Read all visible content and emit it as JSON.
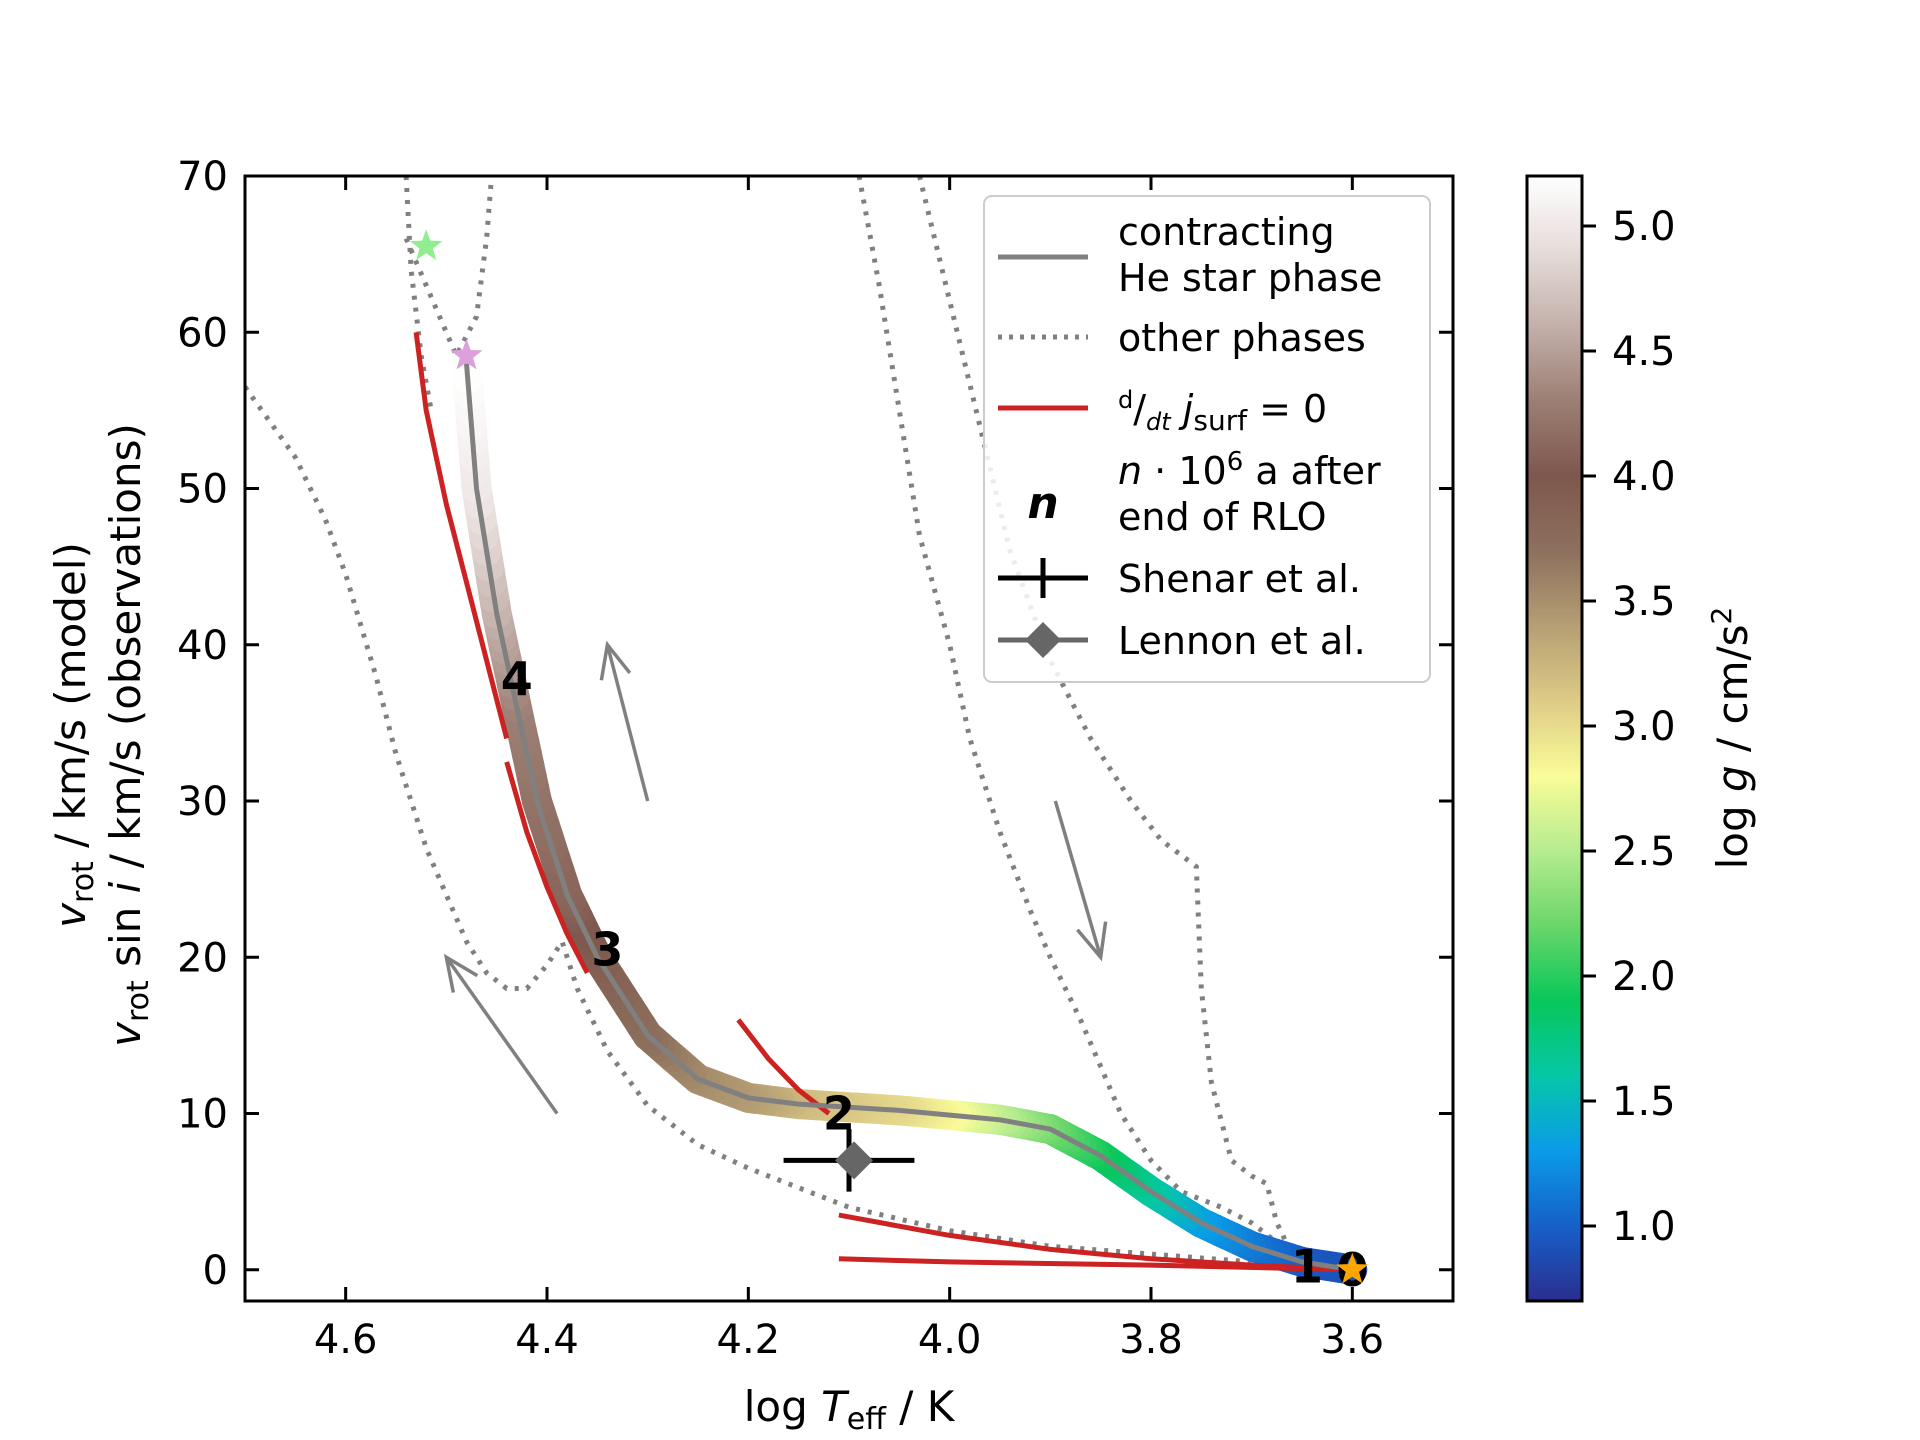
{
  "chart_data": {
    "type": "line",
    "xlabel": {
      "pre": "log ",
      "var": "T",
      "sub": "eff",
      "post": " / K"
    },
    "ylabel_line1": {
      "var": "v",
      "sub": "rot",
      "post": " / km/s (model)"
    },
    "ylabel_line2": {
      "var": "v",
      "sub": "rot",
      "mid": " sin ",
      "ivar": "i",
      "post": " / km/s (observations)"
    },
    "xlim": [
      4.7,
      3.5
    ],
    "ylim": [
      -2,
      70
    ],
    "x_ticks": [
      4.6,
      4.4,
      4.2,
      4.0,
      3.8,
      3.6
    ],
    "x_tick_labels": [
      "4.6",
      "4.4",
      "4.2",
      "4.0",
      "3.8",
      "3.6"
    ],
    "y_ticks": [
      0,
      10,
      20,
      30,
      40,
      50,
      60,
      70
    ],
    "y_tick_labels": [
      "0",
      "10",
      "20",
      "30",
      "40",
      "50",
      "60",
      "70"
    ],
    "colorbar": {
      "label": {
        "pre": "log ",
        "var": "g",
        "post": " / cm/s",
        "sup": "2"
      },
      "range": [
        0.7,
        5.2
      ],
      "ticks": [
        1.0,
        1.5,
        2.0,
        2.5,
        3.0,
        3.5,
        4.0,
        4.5,
        5.0
      ],
      "tick_labels": [
        "1.0",
        "1.5",
        "2.0",
        "2.5",
        "3.0",
        "3.5",
        "4.0",
        "4.5",
        "5.0"
      ],
      "colormap": [
        "#2a2e8f",
        "#1660c8",
        "#0a9be8",
        "#05c7a8",
        "#08c75a",
        "#6ad66a",
        "#b6ec8f",
        "#fafc98",
        "#ddcb86",
        "#b59f74",
        "#8d705d",
        "#7e574d",
        "#9c7f74",
        "#c4b0aa",
        "#e6dcda",
        "#ffffff"
      ]
    },
    "series": [
      {
        "name": "contracting He star phase",
        "style": "solid",
        "color": "#808080",
        "points": [
          [
            3.6,
            0.0
          ],
          [
            3.65,
            0.5
          ],
          [
            3.7,
            1.5
          ],
          [
            3.75,
            3.0
          ],
          [
            3.8,
            5.0
          ],
          [
            3.85,
            7.3
          ],
          [
            3.9,
            9.0
          ],
          [
            3.95,
            9.6
          ],
          [
            4.0,
            9.9
          ],
          [
            4.05,
            10.2
          ],
          [
            4.1,
            10.4
          ],
          [
            4.15,
            10.6
          ],
          [
            4.2,
            11.0
          ],
          [
            4.25,
            12.2
          ],
          [
            4.3,
            15.0
          ],
          [
            4.35,
            20.0
          ],
          [
            4.38,
            24.0
          ],
          [
            4.41,
            30.0
          ],
          [
            4.43,
            36.0
          ],
          [
            4.45,
            42.0
          ],
          [
            4.47,
            50.0
          ],
          [
            4.48,
            58.0
          ]
        ],
        "logg": [
          0.9,
          0.95,
          1.1,
          1.3,
          1.6,
          1.9,
          2.2,
          2.5,
          2.8,
          3.0,
          3.1,
          3.2,
          3.4,
          3.5,
          3.7,
          3.9,
          4.1,
          4.2,
          4.3,
          4.6,
          5.0,
          5.2
        ]
      },
      {
        "name": "other phases",
        "style": "dotted",
        "color": "#808080",
        "segments": [
          [
            [
              4.7,
              56.5
            ],
            [
              4.65,
              52.0
            ],
            [
              4.62,
              48.0
            ],
            [
              4.6,
              44.5
            ],
            [
              4.57,
              38.0
            ],
            [
              4.55,
              33.0
            ],
            [
              4.52,
              27.0
            ],
            [
              4.5,
              24.0
            ],
            [
              4.48,
              21.0
            ],
            [
              4.46,
              19.0
            ],
            [
              4.44,
              18.0
            ],
            [
              4.42,
              18.0
            ],
            [
              4.4,
              19.5
            ],
            [
              4.385,
              21.0
            ],
            [
              4.37,
              18.0
            ],
            [
              4.34,
              14.0
            ],
            [
              4.3,
              10.5
            ],
            [
              4.25,
              8.0
            ],
            [
              4.2,
              6.5
            ],
            [
              4.1,
              4.0
            ],
            [
              4.0,
              2.5
            ],
            [
              3.9,
              1.5
            ],
            [
              3.8,
              1.0
            ],
            [
              3.7,
              0.5
            ],
            [
              3.6,
              0.0
            ]
          ],
          [
            [
              4.54,
              70.0
            ],
            [
              4.535,
              64.0
            ],
            [
              4.525,
              58.5
            ],
            [
              4.515,
              55.0
            ]
          ],
          [
            [
              4.54,
              66.0
            ],
            [
              4.52,
              63.0
            ],
            [
              4.5,
              60.0
            ],
            [
              4.49,
              58.5
            ],
            [
              4.47,
              61.0
            ],
            [
              4.46,
              66.0
            ],
            [
              4.455,
              70.0
            ]
          ],
          [
            [
              4.09,
              70.0
            ],
            [
              4.07,
              63.0
            ],
            [
              4.05,
              55.0
            ],
            [
              4.03,
              47.0
            ],
            [
              4.0,
              40.0
            ],
            [
              3.98,
              34.0
            ],
            [
              3.95,
              28.0
            ],
            [
              3.92,
              23.0
            ],
            [
              3.9,
              20.0
            ],
            [
              3.87,
              16.0
            ],
            [
              3.85,
              13.0
            ],
            [
              3.83,
              10.0
            ],
            [
              3.8,
              7.0
            ],
            [
              3.77,
              5.0
            ],
            [
              3.73,
              4.0
            ],
            [
              3.7,
              3.0
            ],
            [
              3.68,
              2.0
            ],
            [
              3.66,
              1.0
            ],
            [
              3.64,
              0.5
            ],
            [
              3.6,
              0.0
            ]
          ],
          [
            [
              4.03,
              70.0
            ],
            [
              4.0,
              62.0
            ],
            [
              3.97,
              54.0
            ],
            [
              3.94,
              46.0
            ],
            [
              3.9,
              39.0
            ],
            [
              3.86,
              34.0
            ],
            [
              3.82,
              30.0
            ],
            [
              3.79,
              27.5
            ],
            [
              3.755,
              25.8
            ],
            [
              3.75,
              18.0
            ],
            [
              3.74,
              12.0
            ],
            [
              3.72,
              7.0
            ],
            [
              3.7,
              6.0
            ],
            [
              3.685,
              5.5
            ],
            [
              3.675,
              3.0
            ],
            [
              3.66,
              1.0
            ],
            [
              3.6,
              0.0
            ]
          ]
        ]
      },
      {
        "name": "d/dt j_surf = 0",
        "style": "solid",
        "color": "#cc2222",
        "segments": [
          [
            [
              4.53,
              60.0
            ],
            [
              4.52,
              55.0
            ],
            [
              4.5,
              49.0
            ],
            [
              4.48,
              44.0
            ],
            [
              4.46,
              39.0
            ],
            [
              4.44,
              34.0
            ]
          ],
          [
            [
              4.44,
              32.5
            ],
            [
              4.42,
              28.0
            ],
            [
              4.4,
              24.5
            ],
            [
              4.38,
              21.5
            ],
            [
              4.36,
              19.0
            ]
          ],
          [
            [
              4.21,
              16.0
            ],
            [
              4.18,
              13.5
            ],
            [
              4.15,
              11.5
            ],
            [
              4.12,
              10.0
            ]
          ],
          [
            [
              4.11,
              3.5
            ],
            [
              4.0,
              2.2
            ],
            [
              3.9,
              1.3
            ],
            [
              3.8,
              0.7
            ],
            [
              3.7,
              0.3
            ],
            [
              3.6,
              0.0
            ]
          ],
          [
            [
              4.11,
              0.7
            ],
            [
              4.0,
              0.5
            ],
            [
              3.8,
              0.3
            ],
            [
              3.6,
              0.0
            ]
          ]
        ]
      }
    ],
    "age_markers": [
      {
        "label": "0",
        "x": 3.6,
        "y": 0.0
      },
      {
        "label": "1",
        "x": 3.645,
        "y": 0.2
      },
      {
        "label": "2",
        "x": 4.11,
        "y": 10.0
      },
      {
        "label": "3",
        "x": 4.34,
        "y": 20.5
      },
      {
        "label": "4",
        "x": 4.43,
        "y": 37.8
      }
    ],
    "stars": [
      {
        "x": 4.52,
        "y": 65.5,
        "color": "#90ee90"
      },
      {
        "x": 4.48,
        "y": 58.5,
        "color": "#dda0dd"
      },
      {
        "x": 3.6,
        "y": 0.0,
        "color": "#ffa500"
      }
    ],
    "observations": [
      {
        "name": "Shenar et al.",
        "x": 4.1,
        "y": 7.0,
        "xerr": 0.065,
        "yerr": 2.0,
        "marker": "plus",
        "color": "#000000"
      },
      {
        "name": "Lennon et al.",
        "x": 4.095,
        "y": 7.0,
        "marker": "diamond",
        "color": "#666666"
      }
    ],
    "arrows": [
      {
        "from": [
          4.39,
          10.0
        ],
        "to": [
          4.5,
          20.0
        ]
      },
      {
        "from": [
          4.3,
          30.0
        ],
        "to": [
          4.34,
          40.0
        ]
      },
      {
        "from": [
          3.895,
          30.0
        ],
        "to": [
          3.85,
          20.0
        ]
      }
    ],
    "legend": {
      "position": "top-right",
      "entries": [
        {
          "kind": "solid-gray",
          "lines": [
            "contracting",
            "He star phase"
          ]
        },
        {
          "kind": "dotted-gray",
          "lines": [
            "other phases"
          ]
        },
        {
          "kind": "solid-red",
          "lines": [
            "d/dt j_surf = 0"
          ],
          "num": "d",
          "den": "dt",
          "var": "j",
          "sub": "surf",
          "rest": " = 0"
        },
        {
          "kind": "age-number",
          "symbol": "n",
          "lines": [
            "n·10⁶ a after",
            "end of RLO"
          ],
          "var": "n",
          "dot": " · 10",
          "sup": "6",
          "rest": " a after",
          "line2": " end of RLO"
        },
        {
          "kind": "errorbar",
          "lines": [
            "Shenar et al."
          ]
        },
        {
          "kind": "diamond",
          "lines": [
            "Lennon et al."
          ]
        }
      ]
    }
  }
}
